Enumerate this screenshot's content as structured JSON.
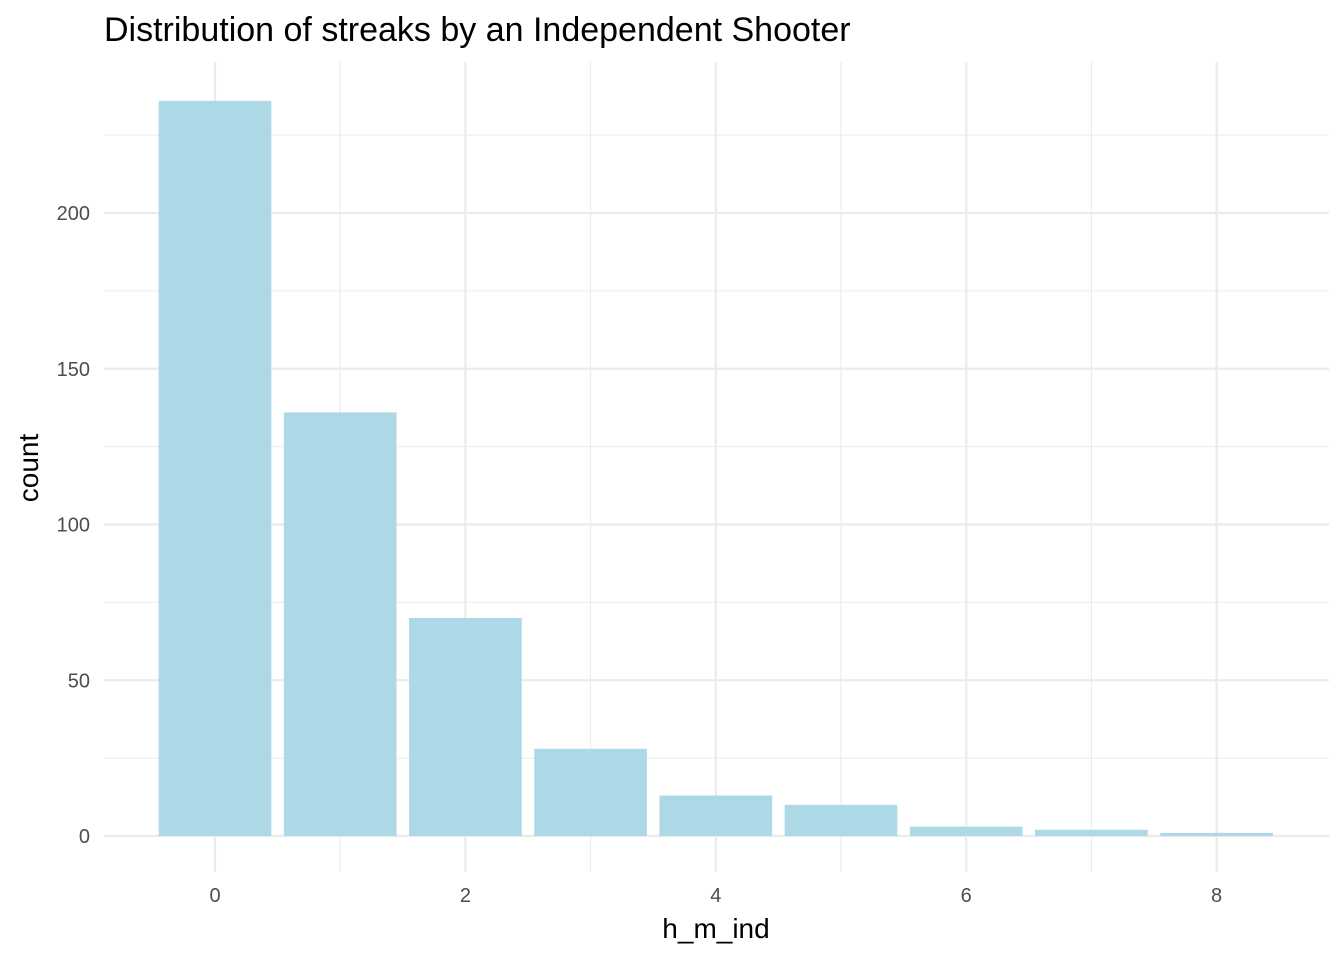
{
  "chart_data": {
    "type": "bar",
    "title": "Distribution of streaks by an Independent Shooter",
    "xlabel": "h_m_ind",
    "ylabel": "count",
    "x": [
      0,
      1,
      2,
      3,
      4,
      5,
      6,
      7,
      8
    ],
    "values": [
      236,
      136,
      70,
      28,
      13,
      10,
      3,
      2,
      1
    ],
    "xlim": [
      -0.5,
      8.5
    ],
    "ylim": [
      0,
      236
    ],
    "x_ticks": [
      "0",
      "2",
      "4",
      "6",
      "8"
    ],
    "y_ticks": [
      "0",
      "50",
      "100",
      "150",
      "200"
    ],
    "bar_color": "#add8e6",
    "grid": true,
    "legend": "none"
  }
}
